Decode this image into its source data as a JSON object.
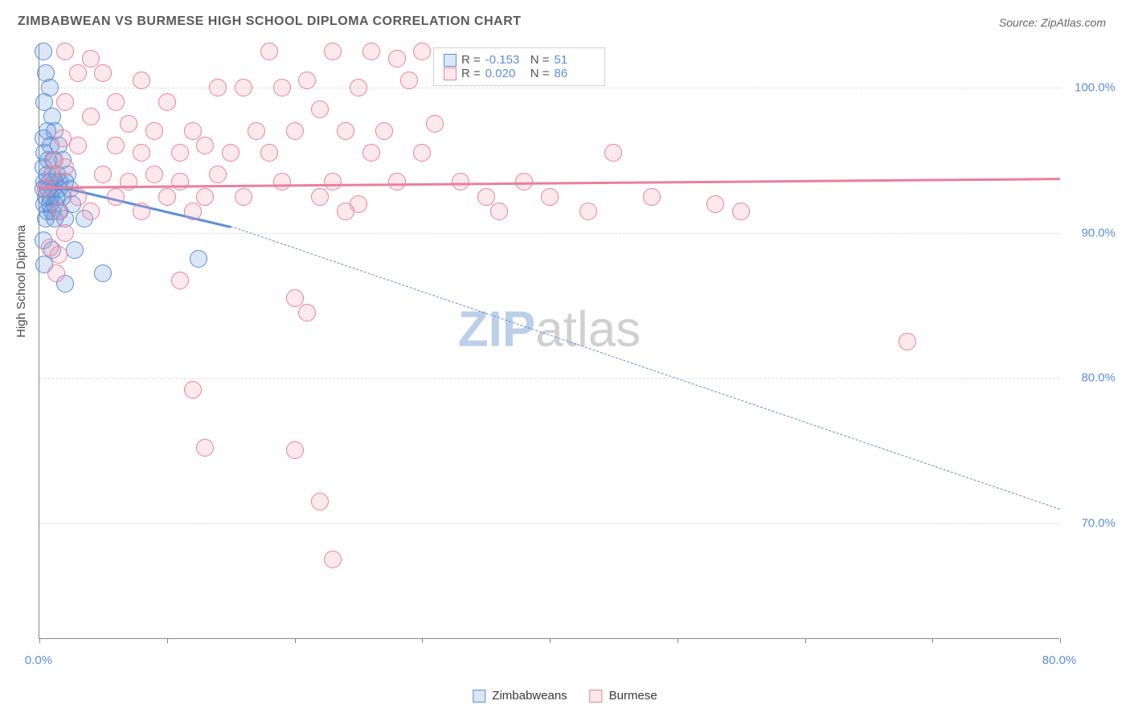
{
  "title": "ZIMBABWEAN VS BURMESE HIGH SCHOOL DIPLOMA CORRELATION CHART",
  "source": "Source: ZipAtlas.com",
  "ylabel": "High School Diploma",
  "watermark": {
    "part1": "ZIP",
    "part2": "atlas"
  },
  "chart": {
    "type": "scatter",
    "background_color": "#ffffff",
    "grid_color": "#dcdcdc",
    "axis_color": "#888888",
    "label_color": "#5b8fd6",
    "xlim": [
      0,
      80
    ],
    "ylim": [
      62,
      103
    ],
    "xtick_positions": [
      0,
      10,
      20,
      30,
      40,
      50,
      60,
      70,
      80
    ],
    "xtick_labels": {
      "0": "0.0%",
      "80": "80.0%"
    },
    "ytick_positions": [
      70,
      80,
      90,
      100
    ],
    "ytick_labels": [
      "70.0%",
      "80.0%",
      "90.0%",
      "100.0%"
    ],
    "point_radius": 11,
    "point_stroke_width": 1.2,
    "point_fill_opacity": 0.22,
    "series": [
      {
        "name": "Zimbabweans",
        "color": "#5b8fd6",
        "fill": "rgba(91,143,214,0.22)",
        "R": "-0.153",
        "N": "51",
        "trend": {
          "x1": 0,
          "y1": 93.6,
          "x2": 15,
          "y2": 90.5,
          "solid": true
        },
        "trend_ext": {
          "x1": 15,
          "y1": 90.5,
          "x2": 80,
          "y2": 71.0,
          "solid": false
        },
        "points": [
          [
            0.3,
            102.5
          ],
          [
            0.5,
            101
          ],
          [
            0.8,
            100
          ],
          [
            0.4,
            99
          ],
          [
            1.0,
            98
          ],
          [
            0.6,
            97
          ],
          [
            1.2,
            97
          ],
          [
            0.3,
            96.5
          ],
          [
            0.9,
            96
          ],
          [
            1.5,
            96
          ],
          [
            0.4,
            95.5
          ],
          [
            0.7,
            95
          ],
          [
            1.1,
            95
          ],
          [
            1.8,
            95
          ],
          [
            0.3,
            94.5
          ],
          [
            0.6,
            94
          ],
          [
            1.0,
            94
          ],
          [
            1.4,
            94
          ],
          [
            2.2,
            94
          ],
          [
            0.4,
            93.5
          ],
          [
            0.8,
            93.5
          ],
          [
            1.2,
            93.5
          ],
          [
            1.6,
            93.5
          ],
          [
            2.0,
            93.5
          ],
          [
            0.3,
            93
          ],
          [
            0.7,
            93
          ],
          [
            1.1,
            93
          ],
          [
            1.5,
            93
          ],
          [
            2.4,
            93
          ],
          [
            0.5,
            92.5
          ],
          [
            0.9,
            92.5
          ],
          [
            1.3,
            92.5
          ],
          [
            1.8,
            92.5
          ],
          [
            0.4,
            92
          ],
          [
            0.8,
            92
          ],
          [
            1.2,
            92
          ],
          [
            2.6,
            92
          ],
          [
            0.6,
            91.5
          ],
          [
            1.0,
            91.5
          ],
          [
            1.6,
            91.5
          ],
          [
            0.5,
            91
          ],
          [
            1.2,
            91
          ],
          [
            2.0,
            91
          ],
          [
            3.5,
            91
          ],
          [
            0.3,
            89.5
          ],
          [
            1.0,
            88.8
          ],
          [
            2.8,
            88.8
          ],
          [
            0.4,
            87.8
          ],
          [
            5.0,
            87.2
          ],
          [
            12.5,
            88.2
          ],
          [
            2.0,
            86.5
          ]
        ]
      },
      {
        "name": "Burmese",
        "color": "#e97f9c",
        "fill": "rgba(244,166,189,0.25)",
        "R": "0.020",
        "N": "86",
        "trend": {
          "x1": 0,
          "y1": 93.2,
          "x2": 80,
          "y2": 93.8,
          "solid": true
        },
        "points": [
          [
            2,
            102.5
          ],
          [
            4,
            102
          ],
          [
            18,
            102.5
          ],
          [
            23,
            102.5
          ],
          [
            26,
            102.5
          ],
          [
            28,
            102
          ],
          [
            30,
            102.5
          ],
          [
            3,
            101
          ],
          [
            5,
            101
          ],
          [
            8,
            100.5
          ],
          [
            14,
            100
          ],
          [
            16,
            100
          ],
          [
            19,
            100
          ],
          [
            21,
            100.5
          ],
          [
            25,
            100
          ],
          [
            29,
            100.5
          ],
          [
            2,
            99
          ],
          [
            6,
            99
          ],
          [
            10,
            99
          ],
          [
            22,
            98.5
          ],
          [
            4,
            98
          ],
          [
            7,
            97.5
          ],
          [
            9,
            97
          ],
          [
            12,
            97
          ],
          [
            17,
            97
          ],
          [
            20,
            97
          ],
          [
            24,
            97
          ],
          [
            27,
            97
          ],
          [
            31,
            97.5
          ],
          [
            3,
            96
          ],
          [
            6,
            96
          ],
          [
            8,
            95.5
          ],
          [
            11,
            95.5
          ],
          [
            13,
            96
          ],
          [
            15,
            95.5
          ],
          [
            18,
            95.5
          ],
          [
            26,
            95.5
          ],
          [
            30,
            95.5
          ],
          [
            45,
            95.5
          ],
          [
            2,
            94.5
          ],
          [
            5,
            94
          ],
          [
            7,
            93.5
          ],
          [
            9,
            94
          ],
          [
            11,
            93.5
          ],
          [
            14,
            94
          ],
          [
            19,
            93.5
          ],
          [
            23,
            93.5
          ],
          [
            28,
            93.5
          ],
          [
            33,
            93.5
          ],
          [
            38,
            93.5
          ],
          [
            3,
            92.5
          ],
          [
            6,
            92.5
          ],
          [
            10,
            92.5
          ],
          [
            13,
            92.5
          ],
          [
            16,
            92.5
          ],
          [
            22,
            92.5
          ],
          [
            25,
            92
          ],
          [
            35,
            92.5
          ],
          [
            40,
            92.5
          ],
          [
            48,
            92.5
          ],
          [
            4,
            91.5
          ],
          [
            8,
            91.5
          ],
          [
            12,
            91.5
          ],
          [
            24,
            91.5
          ],
          [
            36,
            91.5
          ],
          [
            43,
            91.5
          ],
          [
            55,
            91.5
          ],
          [
            2,
            90
          ],
          [
            1.5,
            88.5
          ],
          [
            1.3,
            87.2
          ],
          [
            11,
            86.7
          ],
          [
            20,
            85.5
          ],
          [
            21,
            84.5
          ],
          [
            12,
            79.2
          ],
          [
            13,
            75.2
          ],
          [
            20,
            75.0
          ],
          [
            22,
            71.5
          ],
          [
            23,
            67.5
          ],
          [
            68,
            82.5
          ],
          [
            53,
            92.0
          ],
          [
            0.8,
            89
          ],
          [
            0.5,
            93
          ],
          [
            1.0,
            94
          ],
          [
            1.2,
            95
          ],
          [
            1.5,
            91.5
          ],
          [
            1.8,
            96.5
          ]
        ]
      }
    ]
  },
  "legend": {
    "series1": "Zimbabweans",
    "series2": "Burmese"
  },
  "stat_labels": {
    "r": "R =",
    "n": "N ="
  }
}
